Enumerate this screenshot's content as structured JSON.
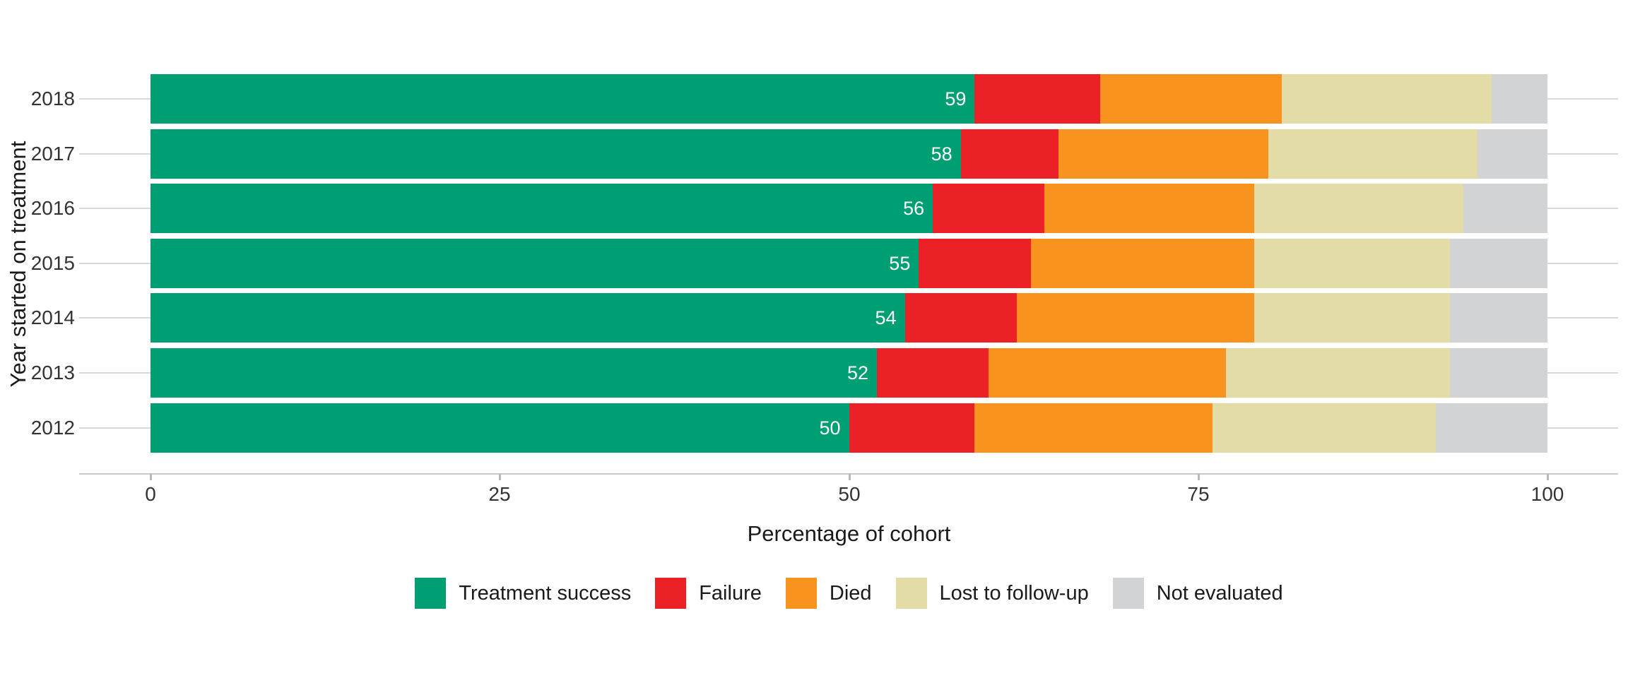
{
  "chart_data": {
    "type": "bar",
    "orientation": "horizontal",
    "stacked": true,
    "title": "",
    "xlabel": "Percentage of cohort",
    "ylabel": "Year started on treatment",
    "categories": [
      "2018",
      "2017",
      "2016",
      "2015",
      "2014",
      "2013",
      "2012"
    ],
    "x_ticks": [
      "0",
      "25",
      "50",
      "75",
      "100"
    ],
    "x_tick_values": [
      0,
      25,
      50,
      75,
      100
    ],
    "xlim": [
      0,
      100
    ],
    "grid": "horizontal category gridlines, light gray",
    "legend_position": "bottom-center",
    "bar_labels": [
      "59",
      "58",
      "56",
      "55",
      "54",
      "52",
      "50"
    ],
    "bar_label_series": "Treatment success",
    "series": [
      {
        "name": "Treatment success",
        "color": "#009E73",
        "values": [
          59,
          58,
          56,
          55,
          54,
          52,
          50
        ]
      },
      {
        "name": "Failure",
        "color": "#EC2027",
        "values": [
          9,
          7,
          8,
          8,
          8,
          8,
          9
        ]
      },
      {
        "name": "Died",
        "color": "#F7931E",
        "values": [
          13,
          15,
          15,
          16,
          17,
          17,
          17
        ]
      },
      {
        "name": "Lost to follow-up",
        "color": "#E3DCA6",
        "values": [
          15,
          15,
          15,
          14,
          14,
          16,
          16
        ]
      },
      {
        "name": "Not evaluated",
        "color": "#D2D3D5",
        "values": [
          4,
          5,
          6,
          7,
          7,
          7,
          8
        ]
      }
    ],
    "colors": {
      "gridline": "#d9d9d9",
      "axis_line": "#c8c8c8",
      "tick_mark": "#b9b9b9",
      "tick_text": "#333333",
      "title_text": "#1a1a1a",
      "bar_label_text": "#ffffff",
      "background": "#ffffff"
    }
  }
}
